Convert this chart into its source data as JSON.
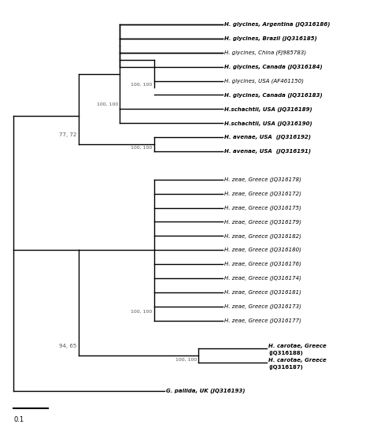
{
  "taxa": [
    {
      "name": "H. glycines, Argentina (JQ316186)",
      "bold": true,
      "italic_species": true,
      "y": 27
    },
    {
      "name": "H. glycines, Brazil (JQ316185)",
      "bold": true,
      "italic_species": true,
      "y": 26
    },
    {
      "name": "H. glycines, China (FJ985783)",
      "bold": false,
      "italic_species": true,
      "y": 25
    },
    {
      "name": "H. glycines, Canada (JQ316184)",
      "bold": true,
      "italic_species": true,
      "y": 24
    },
    {
      "name": "H. glycines, USA (AF461150)",
      "bold": false,
      "italic_species": true,
      "y": 23
    },
    {
      "name": "H. glycines, Canada (JQ316183)",
      "bold": true,
      "italic_species": true,
      "y": 22
    },
    {
      "name": "H.schachtii, USA (JQ316189)",
      "bold": true,
      "italic_species": true,
      "y": 21
    },
    {
      "name": "H.schachtii, USA (JQ316190)",
      "bold": true,
      "italic_species": true,
      "y": 20
    },
    {
      "name": "H. avenae, USA  (JQ316192)",
      "bold": true,
      "italic_species": true,
      "y": 19
    },
    {
      "name": "H. avenae, USA  (JQ316191)",
      "bold": true,
      "italic_species": true,
      "y": 18
    },
    {
      "name": "H. zeae, Greece (JQ316178)",
      "bold": false,
      "italic_species": true,
      "y": 16
    },
    {
      "name": "H. zeae, Greece (JQ316172)",
      "bold": false,
      "italic_species": true,
      "y": 15
    },
    {
      "name": "H. zeae, Greece (JQ316175)",
      "bold": false,
      "italic_species": true,
      "y": 14
    },
    {
      "name": "H. zeae, Greece (JQ316179)",
      "bold": false,
      "italic_species": true,
      "y": 13
    },
    {
      "name": "H. zeae, Greece (JQ316182)",
      "bold": false,
      "italic_species": true,
      "y": 12
    },
    {
      "name": "H. zeae, Greece (JQ316180)",
      "bold": false,
      "italic_species": true,
      "y": 11
    },
    {
      "name": "H. zeae, Greece (JQ316176)",
      "bold": false,
      "italic_species": true,
      "y": 10
    },
    {
      "name": "H. zeae, Greece (JQ316174)",
      "bold": false,
      "italic_species": true,
      "y": 9
    },
    {
      "name": "H. zeae, Greece (JQ316181)",
      "bold": false,
      "italic_species": true,
      "y": 8
    },
    {
      "name": "H. zeae, Greece (JQ316173)",
      "bold": false,
      "italic_species": true,
      "y": 7
    },
    {
      "name": "H. zeae, Greece (JQ316177)",
      "bold": false,
      "italic_species": true,
      "y": 6
    },
    {
      "name": "H. carotae, Greece\n(JQ316188)",
      "bold": true,
      "italic_species": true,
      "y": 4
    },
    {
      "name": "H. carotae, Greece\n(JQ316187)",
      "bold": true,
      "italic_species": true,
      "y": 3
    },
    {
      "name": "G. pallida, UK (JQ316193)",
      "bold": true,
      "italic_species": true,
      "y": 1
    }
  ],
  "background_color": "#ffffff",
  "line_color": "#000000",
  "text_color": "#000000",
  "support_color": "#555555"
}
